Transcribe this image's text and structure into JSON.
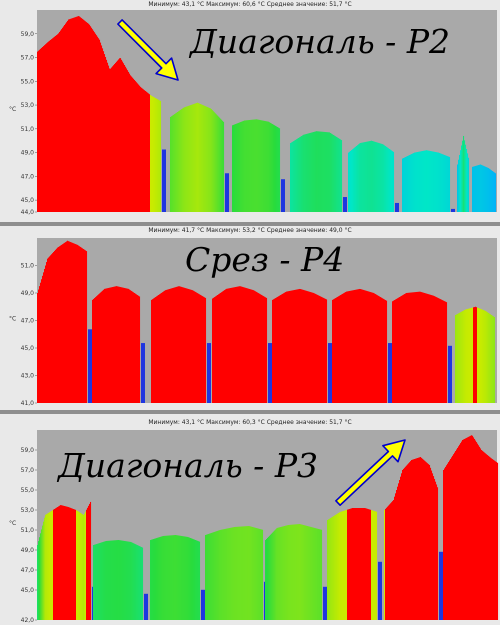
{
  "colors": {
    "background": "#8e8e8e",
    "plot_bg": "#a9a9a9",
    "arrow_fill": "#ffff00",
    "arrow_stroke": "#0000cc",
    "hot": "#ff0000",
    "cold": "#1e36e0"
  },
  "chart_data": [
    {
      "type": "bar",
      "title": "Диагональ  - Р2",
      "stats": "Минимум: 43,1 °C Максимум: 60,6 °C Среднее значение: 51,7 °C",
      "ylabel": "°C",
      "ylim": [
        44.0,
        61.0
      ],
      "yticks": [
        "44,0",
        "45,0",
        "47,0",
        "49,0",
        "51,0",
        "53,0",
        "55,0",
        "57,0",
        "59,0"
      ],
      "arrow": "down-right",
      "segments": [
        {
          "start": 37,
          "peaks": [
            57.5,
            58.3,
            59.0,
            60.2,
            60.5,
            59.8,
            58.5,
            56.0,
            57.0,
            55.5,
            54.5,
            53.8,
            53.3
          ],
          "floor": 53.0,
          "width": 124
        },
        {
          "start": 170,
          "peaks": [
            52.0,
            52.8,
            53.2,
            52.7,
            51.5
          ],
          "floor": 51.0,
          "width": 54
        },
        {
          "start": 232,
          "peaks": [
            51.3,
            51.7,
            51.8,
            51.6,
            51.0
          ],
          "floor": 50.5,
          "width": 48
        },
        {
          "start": 290,
          "peaks": [
            49.8,
            50.5,
            50.8,
            50.7,
            50.0
          ],
          "floor": 49.0,
          "width": 52
        },
        {
          "start": 348,
          "peaks": [
            49.0,
            49.8,
            50.0,
            49.7,
            49.0
          ],
          "floor": 48.5,
          "width": 46
        },
        {
          "start": 402,
          "peaks": [
            48.5,
            49.0,
            49.2,
            49.0,
            48.6
          ],
          "floor": 48.0,
          "width": 48
        },
        {
          "start": 457,
          "peaks": [
            48.0,
            50.4,
            48.2
          ],
          "floor": 47.5,
          "width": 12
        },
        {
          "start": 472,
          "peaks": [
            47.8,
            48.0,
            47.7,
            47.2
          ],
          "floor": 47.0,
          "width": 24
        }
      ]
    },
    {
      "type": "bar",
      "title": "Срез - Р4",
      "stats": "Минимум: 41,7 °C Максимум: 53,2 °C Среднее значение: 49,0 °C",
      "ylabel": "°C",
      "ylim": [
        41.0,
        53.0
      ],
      "yticks": [
        "41,0",
        "43,0",
        "45,0",
        "47,0",
        "49,0",
        "51,0"
      ],
      "arrow": "",
      "segments": [
        {
          "start": 37,
          "peaks": [
            49.0,
            51.5,
            52.3,
            52.8,
            52.5,
            52.0
          ],
          "floor": 49.0,
          "width": 50
        },
        {
          "start": 92,
          "peaks": [
            48.5,
            49.3,
            49.5,
            49.3,
            48.7
          ],
          "floor": 48.0,
          "width": 48
        },
        {
          "start": 151,
          "peaks": [
            48.5,
            49.2,
            49.5,
            49.2,
            48.6
          ],
          "floor": 48.0,
          "width": 55
        },
        {
          "start": 212,
          "peaks": [
            48.6,
            49.3,
            49.5,
            49.2,
            48.6
          ],
          "floor": 48.0,
          "width": 55
        },
        {
          "start": 272,
          "peaks": [
            48.5,
            49.1,
            49.3,
            49.0,
            48.5
          ],
          "floor": 48.0,
          "width": 55
        },
        {
          "start": 332,
          "peaks": [
            48.5,
            49.1,
            49.3,
            49.0,
            48.4
          ],
          "floor": 48.0,
          "width": 55
        },
        {
          "start": 392,
          "peaks": [
            48.4,
            49.0,
            49.1,
            48.8,
            48.3
          ],
          "floor": 47.8,
          "width": 55
        },
        {
          "start": 455,
          "peaks": [
            47.4,
            47.8,
            48.0,
            47.7,
            47.2
          ],
          "floor": 47.0,
          "width": 40
        }
      ]
    },
    {
      "type": "bar",
      "title": "Диагональ  - Р3",
      "stats": "Минимум: 43,1 °C Максимум: 60,3 °C Среднее значение: 51,7 °C",
      "ylabel": "°C",
      "ylim": [
        42.0,
        61.0
      ],
      "yticks": [
        "42,0",
        "45,0",
        "47,0",
        "49,0",
        "51,0",
        "53,0",
        "55,0",
        "57,0",
        "59,0"
      ],
      "arrow": "up-right",
      "segments": [
        {
          "start": 37,
          "peaks": [
            49.5,
            52.5,
            53.0,
            53.5,
            53.3,
            53.0,
            52.5,
            54.0
          ],
          "floor": 49.5,
          "width": 54
        },
        {
          "start": 93,
          "peaks": [
            49.5,
            49.9,
            50.0,
            49.8,
            49.2
          ],
          "floor": 48.8,
          "width": 50
        },
        {
          "start": 150,
          "peaks": [
            50.0,
            50.4,
            50.5,
            50.3,
            49.8
          ],
          "floor": 49.2,
          "width": 50
        },
        {
          "start": 205,
          "peaks": [
            50.5,
            51.0,
            51.3,
            51.4,
            51.0
          ],
          "floor": 50.0,
          "width": 58
        },
        {
          "start": 265,
          "peaks": [
            50.0,
            51.2,
            51.5,
            51.6,
            51.3,
            51.0
          ],
          "floor": 49.5,
          "width": 57
        },
        {
          "start": 327,
          "peaks": [
            52.0,
            52.8,
            53.2,
            53.2,
            52.8
          ],
          "floor": 52.0,
          "width": 50
        },
        {
          "start": 384,
          "peaks": [
            53.0,
            54.0,
            57.0,
            58.0,
            58.3,
            57.5,
            55.0
          ],
          "floor": 53.0,
          "width": 54
        },
        {
          "start": 443,
          "peaks": [
            57.0,
            58.5,
            60.0,
            60.5,
            59.0,
            58.2,
            57.5
          ],
          "floor": 56.5,
          "width": 57
        }
      ]
    }
  ]
}
